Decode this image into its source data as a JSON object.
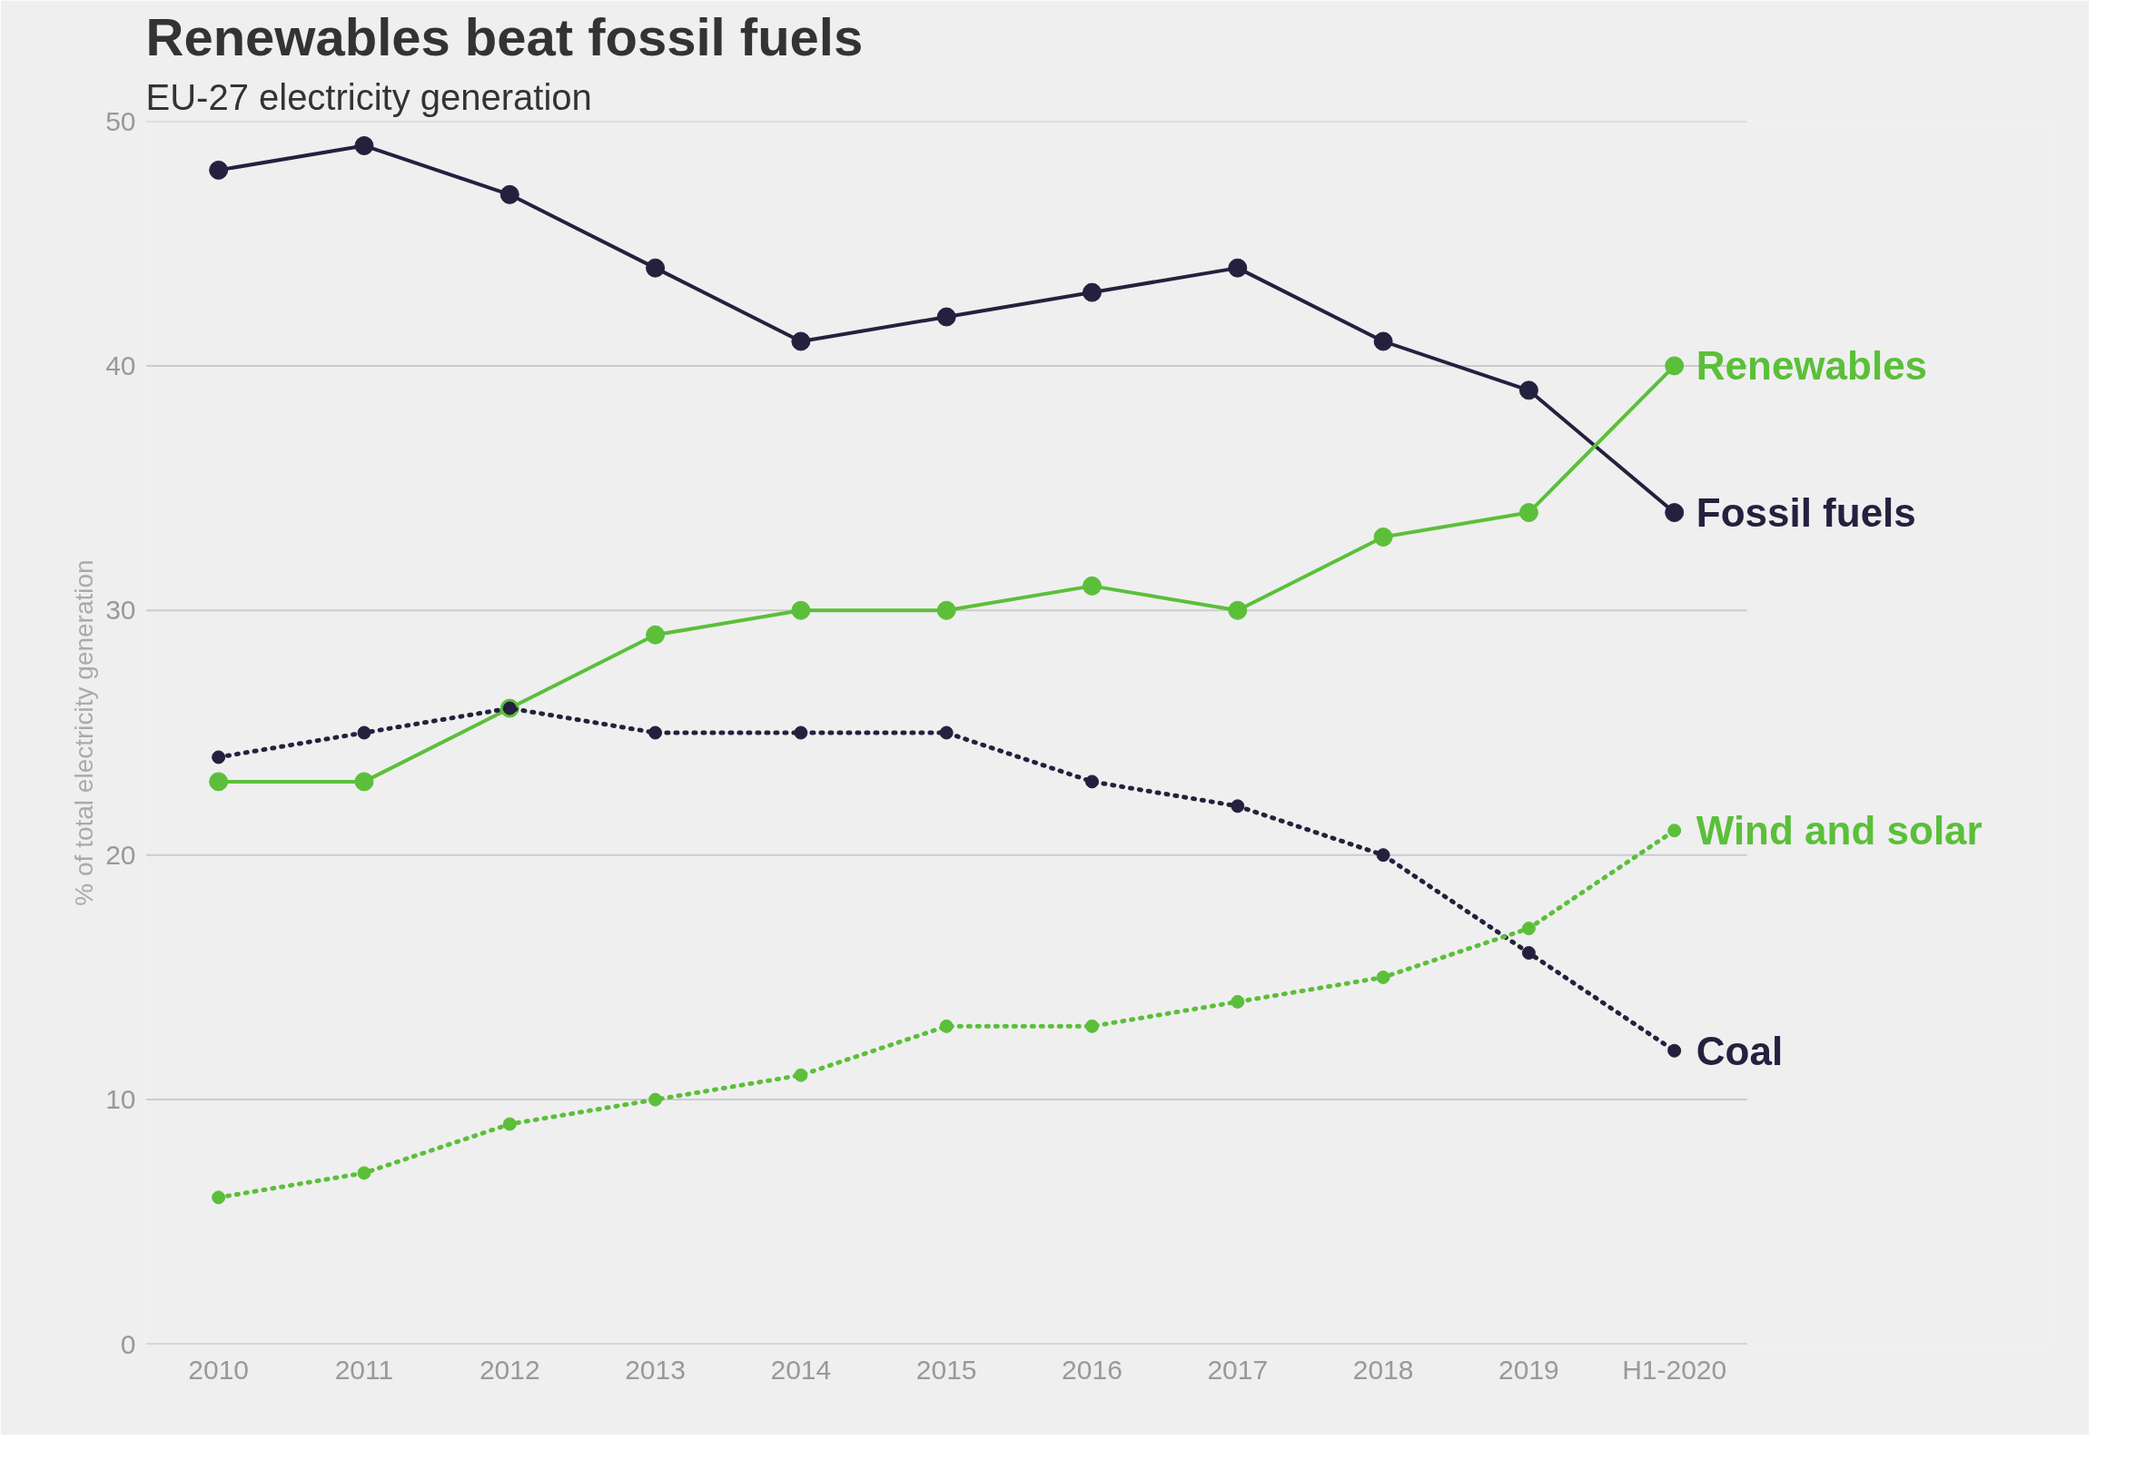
{
  "chart_data": {
    "type": "line",
    "title": "Renewables beat fossil fuels",
    "subtitle": "EU-27 electricity generation",
    "ylabel": "% of total electricity generation",
    "categories": [
      "2010",
      "2011",
      "2012",
      "2013",
      "2014",
      "2015",
      "2016",
      "2017",
      "2018",
      "2019",
      "H1-2020"
    ],
    "ylim": [
      0,
      50
    ],
    "yticks": [
      0,
      10,
      20,
      30,
      40,
      50
    ],
    "grid": "y",
    "legend": false,
    "marker": "circle",
    "series": [
      {
        "name": "Fossil fuels",
        "color": "#24213f",
        "line_style": "solid",
        "values": [
          48,
          49,
          47,
          44,
          41,
          42,
          43,
          44,
          41,
          39,
          34
        ]
      },
      {
        "name": "Renewables",
        "color": "#5bbf3a",
        "line_style": "solid",
        "values": [
          23,
          23,
          26,
          29,
          30,
          30,
          31,
          30,
          33,
          34,
          40
        ]
      },
      {
        "name": "Coal",
        "color": "#24213f",
        "line_style": "dotted",
        "values": [
          24,
          25,
          26,
          25,
          25,
          25,
          23,
          22,
          20,
          16,
          12
        ]
      },
      {
        "name": "Wind and solar",
        "color": "#5bbf3a",
        "line_style": "dotted",
        "values": [
          6,
          7,
          9,
          10,
          11,
          13,
          13,
          14,
          15,
          17,
          21
        ]
      }
    ]
  }
}
